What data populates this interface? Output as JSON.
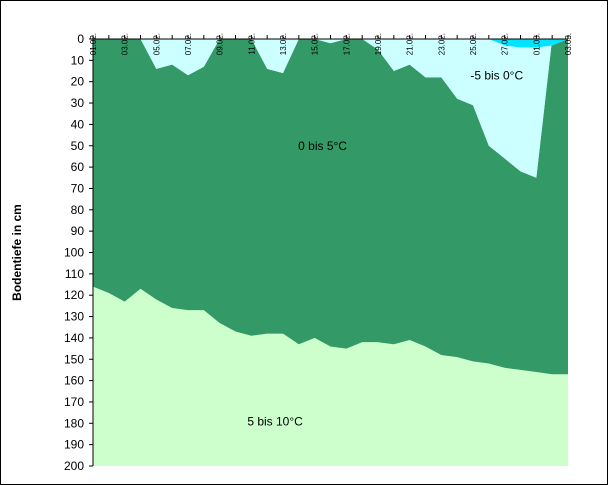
{
  "chart_data": {
    "type": "area",
    "ylabel": "Bodentiefe in cm",
    "ylim": [
      0,
      200
    ],
    "y_inverted": true,
    "y_ticks": [
      0,
      10,
      20,
      30,
      40,
      50,
      60,
      70,
      80,
      90,
      100,
      110,
      120,
      130,
      140,
      150,
      160,
      170,
      180,
      190,
      200
    ],
    "x_labels": [
      "01.02.",
      "03.02.",
      "05.02.",
      "07.02.",
      "09.02.",
      "11.02.",
      "13.02.",
      "15.02.",
      "17.02.",
      "19.02.",
      "21.02.",
      "23.02.",
      "25.02.",
      "27.02.",
      "01.03.",
      "03.03."
    ],
    "x_label_rotation": "vertical",
    "colors": {
      "zone_minus10_minus5": "#00e5ff",
      "zone_minus5_0": "#ccffff",
      "zone_0_5": "#339966",
      "zone_5_10": "#ccffcc"
    },
    "zone_labels": {
      "minus5_0": "-5 bis 0°C",
      "zero_5": "0 bis 5°C",
      "five_10": "5 bis 10°C"
    },
    "days": 31,
    "boundaries": {
      "cold_core_bottom_cm": [
        0,
        0,
        0,
        0,
        0,
        0,
        0,
        0,
        0,
        0,
        0,
        0,
        0,
        0,
        0,
        0,
        0,
        0,
        0,
        0,
        0,
        0,
        0,
        0,
        0,
        0,
        3,
        4,
        4,
        3,
        0
      ],
      "zero_isotherm_cm": [
        0,
        0,
        0,
        0,
        14,
        12,
        17,
        13,
        0,
        0,
        0,
        14,
        16,
        0,
        0,
        2,
        0,
        0,
        5,
        15,
        12,
        18,
        18,
        28,
        31,
        50,
        56,
        62,
        65,
        0,
        0
      ],
      "five_isotherm_cm": [
        116,
        119,
        123,
        117,
        122,
        126,
        127,
        127,
        133,
        137,
        139,
        138,
        138,
        143,
        140,
        144,
        145,
        142,
        142,
        143,
        141,
        144,
        148,
        149,
        151,
        152,
        154,
        155,
        156,
        157,
        157
      ]
    }
  }
}
